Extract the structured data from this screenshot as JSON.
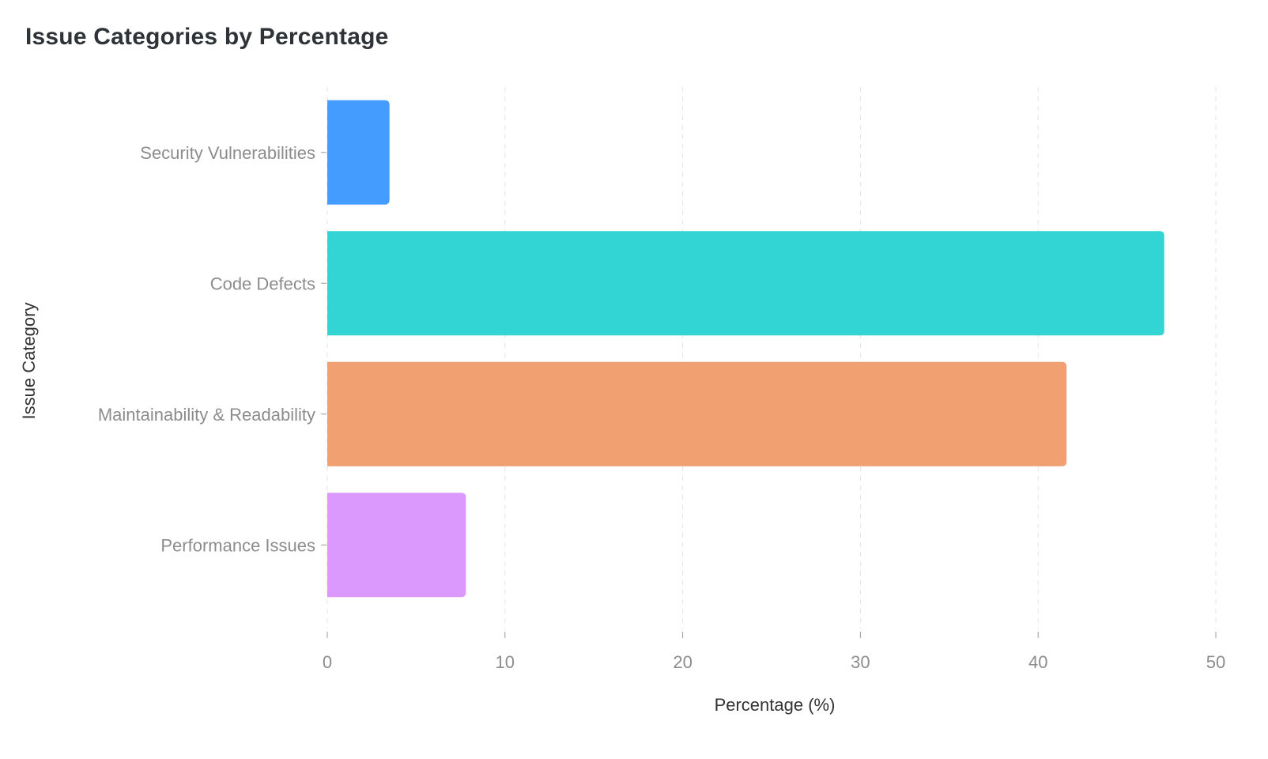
{
  "chart_data": {
    "type": "bar",
    "orientation": "horizontal",
    "title": "Issue Categories by Percentage",
    "xlabel": "Percentage (%)",
    "ylabel": "Issue Category",
    "categories": [
      "Security Vulnerabilities",
      "Code Defects",
      "Maintainability & Readability",
      "Performance Issues"
    ],
    "values": [
      3.5,
      47.1,
      41.6,
      7.8
    ],
    "colors": [
      "#459cff",
      "#33d5d4",
      "#f1a072",
      "#db98fd"
    ],
    "xlim": [
      0,
      50
    ],
    "xticks": [
      0,
      10,
      20,
      30,
      40,
      50
    ],
    "grid": "vertical-dashed",
    "legend": "none"
  }
}
